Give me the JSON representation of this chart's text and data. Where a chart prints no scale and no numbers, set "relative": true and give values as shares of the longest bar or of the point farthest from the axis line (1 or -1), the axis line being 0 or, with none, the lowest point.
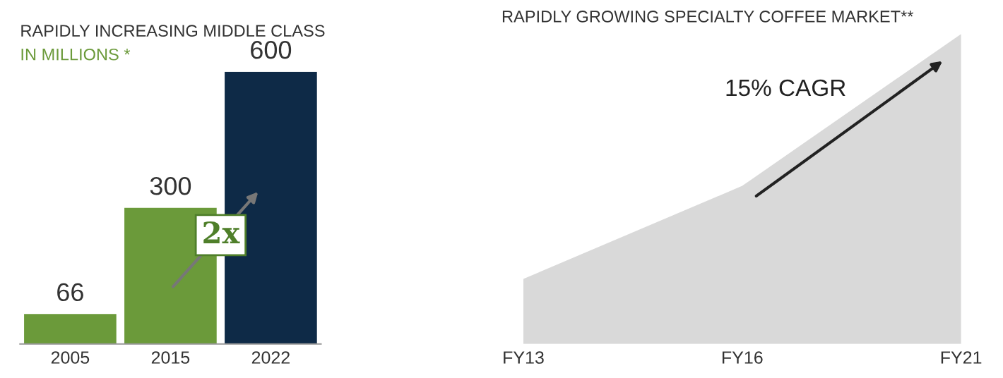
{
  "chart_data": [
    {
      "type": "bar",
      "title": "RAPIDLY INCREASING MIDDLE CLASS",
      "subtitle": "IN MILLIONS *",
      "categories": [
        "2005",
        "2015",
        "2022"
      ],
      "values": [
        66,
        300,
        600
      ],
      "colors": [
        "#6b9a3a",
        "#6b9a3a",
        "#0e2a47"
      ],
      "data_labels": true,
      "annotations": [
        "2x"
      ]
    },
    {
      "type": "area",
      "title": "RAPIDLY GROWING SPECIALTY COFFEE MARKET**",
      "categories": [
        "FY13",
        "FY16",
        "FY21"
      ],
      "relative": true,
      "series": [
        {
          "color": "#d9d9d9",
          "values": [
            0.21,
            0.51,
            1
          ]
        }
      ],
      "annotations": [
        "15% CAGR"
      ]
    }
  ]
}
